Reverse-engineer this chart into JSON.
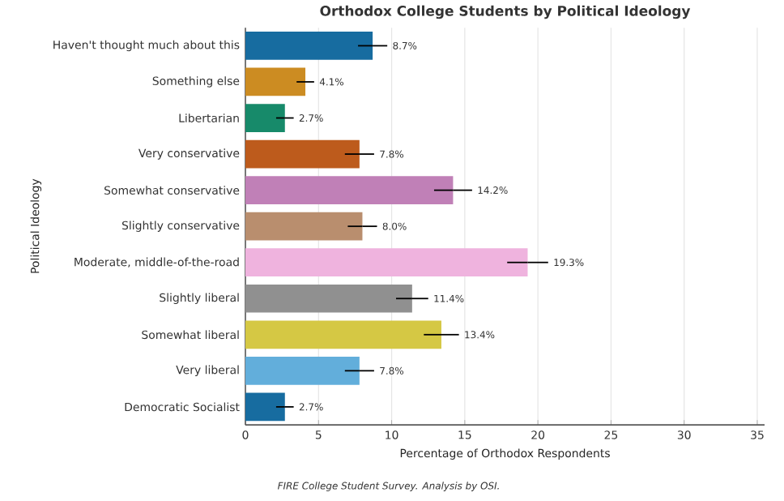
{
  "chart_data": {
    "type": "bar",
    "orientation": "horizontal",
    "title": "Orthodox College Students by Political Ideology",
    "xlabel": "Percentage of Orthodox Respondents",
    "ylabel": "Political Ideology",
    "categories": [
      "Haven't thought much about this",
      "Something else",
      "Libertarian",
      "Very conservative",
      "Somewhat conservative",
      "Slightly conservative",
      "Moderate, middle-of-the-road",
      "Slightly liberal",
      "Somewhat liberal",
      "Very liberal",
      "Democratic Socialist"
    ],
    "values": [
      8.7,
      4.1,
      2.7,
      7.8,
      14.2,
      8.0,
      19.3,
      11.4,
      13.4,
      7.8,
      2.7
    ],
    "errors": [
      1.0,
      0.6,
      0.6,
      1.0,
      1.3,
      1.0,
      1.4,
      1.1,
      1.2,
      1.0,
      0.6
    ],
    "value_labels": [
      "8.7%",
      "4.1%",
      "2.7%",
      "7.8%",
      "14.2%",
      "8.0%",
      "19.3%",
      "11.4%",
      "13.4%",
      "7.8%",
      "2.7%"
    ],
    "colors": [
      "#176ca0",
      "#cc8c22",
      "#178a6a",
      "#bd5b1c",
      "#c080b7",
      "#b98e6e",
      "#efb3de",
      "#909090",
      "#d5c844",
      "#62aedb",
      "#176ca0"
    ],
    "xlim": [
      0,
      35.5
    ],
    "xticks": [
      0,
      5,
      10,
      15,
      20,
      25,
      30,
      35
    ],
    "grid": "x",
    "annotations": [
      "FIRE College Student Survey. Analysis by OSI."
    ]
  }
}
